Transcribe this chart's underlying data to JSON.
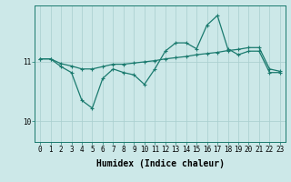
{
  "x": [
    0,
    1,
    2,
    3,
    4,
    5,
    6,
    7,
    8,
    9,
    10,
    11,
    12,
    13,
    14,
    15,
    16,
    17,
    18,
    19,
    20,
    21,
    22,
    23
  ],
  "y_jagged": [
    11.05,
    11.05,
    10.92,
    10.82,
    10.35,
    10.22,
    10.72,
    10.88,
    10.82,
    10.78,
    10.62,
    10.88,
    11.18,
    11.32,
    11.32,
    11.22,
    11.62,
    11.78,
    11.22,
    11.12,
    11.18,
    11.18,
    10.82,
    10.82
  ],
  "y_trend": [
    11.05,
    11.05,
    10.97,
    10.93,
    10.88,
    10.88,
    10.92,
    10.96,
    10.96,
    10.98,
    11.0,
    11.02,
    11.05,
    11.07,
    11.09,
    11.12,
    11.14,
    11.16,
    11.19,
    11.21,
    11.24,
    11.24,
    10.88,
    10.84
  ],
  "bg_color": "#cce8e8",
  "line_color": "#1a7a6e",
  "grid_color": "#a8cece",
  "ylabel_ticks": [
    10,
    11
  ],
  "ylim": [
    9.65,
    11.95
  ],
  "xlim": [
    -0.5,
    23.5
  ],
  "xlabel": "Humidex (Indice chaleur)",
  "tick_fontsize": 5.5,
  "xlabel_fontsize": 7
}
